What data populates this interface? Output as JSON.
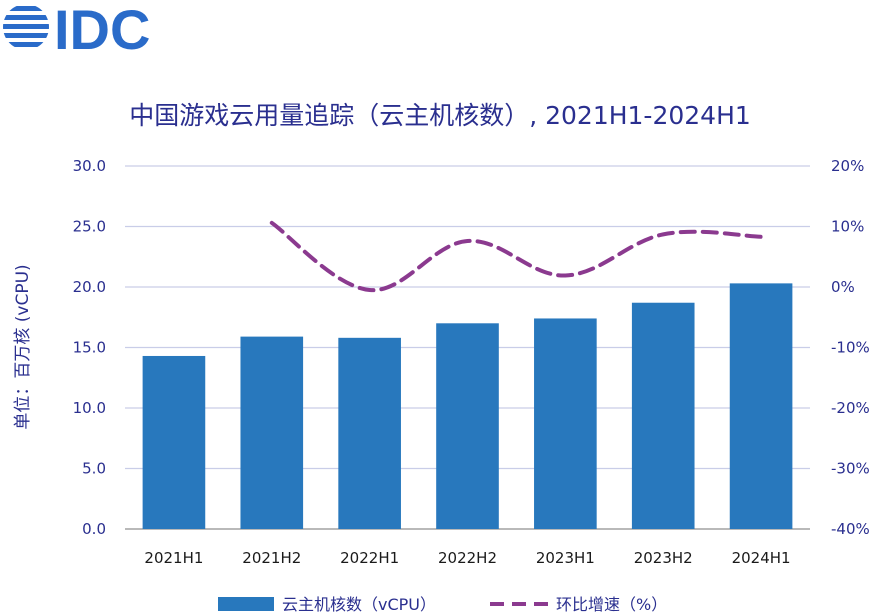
{
  "logo": {
    "text": "IDC",
    "color": "#2a6bc9"
  },
  "chart_data": {
    "type": "bar",
    "title": "中国游戏云用量追踪（云主机核数）, 2021H1-2024H1",
    "ylabel": "单位：百万核 (vCPU)",
    "categories": [
      "2021H1",
      "2021H2",
      "2022H1",
      "2022H2",
      "2023H1",
      "2023H2",
      "2024H1"
    ],
    "ylim": [
      0,
      30
    ],
    "yticks": [
      "0.0",
      "5.0",
      "10.0",
      "15.0",
      "20.0",
      "25.0",
      "30.0"
    ],
    "y2lim": [
      -40,
      20
    ],
    "y2ticks": [
      "-40%",
      "-30%",
      "-20%",
      "-10%",
      "0%",
      "10%",
      "20%"
    ],
    "grid": true,
    "legend_position": "bottom",
    "series": [
      {
        "name": "云主机核数（vCPU）",
        "type": "bar",
        "axis": "left",
        "color": "#2878bd",
        "values": [
          14.3,
          15.9,
          15.8,
          17.0,
          17.4,
          18.7,
          20.3
        ]
      },
      {
        "name": "环比增速（%）",
        "type": "line",
        "style": "dashed",
        "axis": "right",
        "color": "#8b3a8f",
        "values": [
          null,
          10.6,
          -0.5,
          7.6,
          1.9,
          8.7,
          8.3
        ]
      }
    ]
  }
}
